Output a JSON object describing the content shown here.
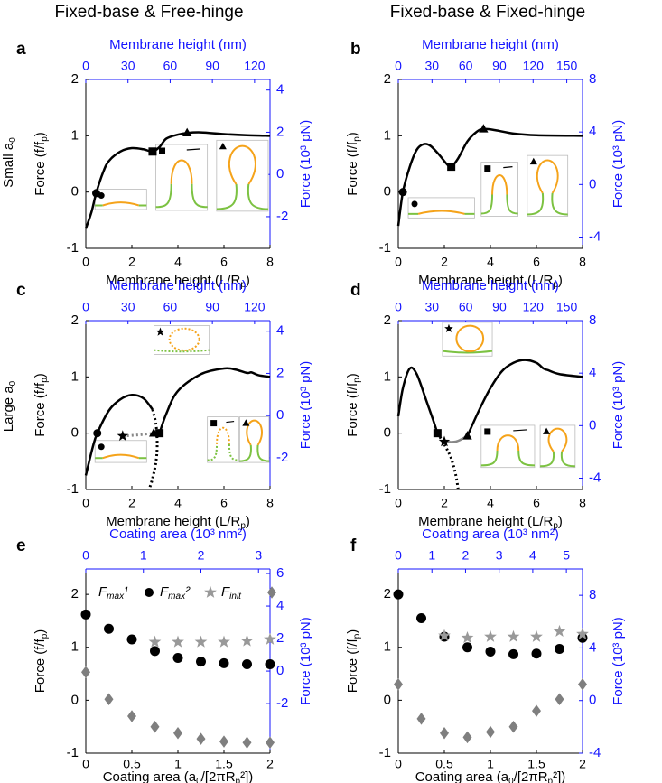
{
  "column_titles": [
    "Fixed-base & Free-hinge",
    "Fixed-base & Fixed-hinge"
  ],
  "row_labels": [
    [
      "Small a",
      "0"
    ],
    [
      "Large a",
      "0"
    ]
  ],
  "chart_data": [
    {
      "type": "line",
      "panel_label": "a",
      "xlabel": [
        "Membrane height (L/R",
        "p",
        ")"
      ],
      "ylabel": [
        "Force (f/f",
        "p",
        ")"
      ],
      "x2label": "Membrane height (nm)",
      "y2label": "Force (10³ pN)",
      "xlim": [
        0,
        8
      ],
      "xticks": [
        0,
        2,
        4,
        6,
        8
      ],
      "ylim": [
        -1,
        2
      ],
      "yticks": [
        -1,
        0,
        1,
        2
      ],
      "x2lim": [
        0,
        131
      ],
      "x2ticks": [
        0,
        30,
        60,
        90,
        120
      ],
      "y2lim": [
        -3.5,
        4.5
      ],
      "y2ticks": [
        -2,
        0,
        2,
        4
      ],
      "series": [
        {
          "color": "#000000",
          "dash": false,
          "x": [
            0,
            0.25,
            0.45,
            0.75,
            1,
            1.5,
            2,
            2.5,
            2.9,
            3.2,
            3.5,
            4,
            4.4,
            5,
            6,
            7,
            8
          ],
          "values": [
            -0.65,
            -0.35,
            -0.02,
            0.35,
            0.55,
            0.72,
            0.78,
            0.76,
            0.72,
            0.8,
            0.95,
            1.02,
            1.05,
            1.06,
            1.03,
            1.01,
            1.0
          ]
        }
      ],
      "markers": {
        "x": [
          0.45,
          2.9,
          4.4
        ],
        "values": [
          -0.02,
          0.72,
          1.05
        ],
        "shapes": [
          "circle",
          "square",
          "triangle"
        ]
      }
    },
    {
      "type": "line",
      "panel_label": "b",
      "xlabel": [
        "Membrane height (L/R",
        "p",
        ")"
      ],
      "ylabel": [
        "Force (f/f",
        "p",
        ")"
      ],
      "x2label": "Membrane height (nm)",
      "y2label": "Force (10³ pN)",
      "xlim": [
        0,
        8
      ],
      "xticks": [
        0,
        2,
        4,
        6,
        8
      ],
      "ylim": [
        -1,
        2
      ],
      "yticks": [
        -1,
        0,
        1,
        2
      ],
      "x2lim": [
        0,
        164
      ],
      "x2ticks": [
        0,
        30,
        60,
        90,
        120,
        150
      ],
      "y2lim": [
        -4.86,
        8
      ],
      "y2ticks": [
        -4,
        0,
        4,
        8
      ],
      "series": [
        {
          "color": "#000000",
          "dash": false,
          "x": [
            0,
            0.2,
            0.5,
            0.8,
            1.1,
            1.4,
            1.8,
            2.1,
            2.3,
            2.6,
            3,
            3.4,
            3.7,
            4.2,
            5,
            6,
            8
          ],
          "values": [
            -0.6,
            0,
            0.45,
            0.75,
            0.85,
            0.82,
            0.65,
            0.5,
            0.45,
            0.6,
            0.9,
            1.07,
            1.12,
            1.1,
            1.04,
            1.01,
            1.0
          ]
        }
      ],
      "markers": {
        "x": [
          0.2,
          2.3,
          3.7
        ],
        "values": [
          0,
          0.45,
          1.12
        ],
        "shapes": [
          "circle",
          "square",
          "triangle"
        ]
      }
    },
    {
      "type": "line",
      "panel_label": "c",
      "xlabel": [
        "Membrane height (L/R",
        "p",
        ")"
      ],
      "ylabel": [
        "Force (f/f",
        "p",
        ")"
      ],
      "x2label": "Membrane height (nm)",
      "y2label": "Force (10³ pN)",
      "xlim": [
        0,
        8
      ],
      "xticks": [
        0,
        2,
        4,
        6,
        8
      ],
      "ylim": [
        -1,
        2
      ],
      "yticks": [
        -1,
        0,
        1,
        2
      ],
      "x2lim": [
        0,
        131
      ],
      "x2ticks": [
        0,
        30,
        60,
        90,
        120
      ],
      "y2lim": [
        -3.5,
        4.5
      ],
      "y2ticks": [
        -2,
        0,
        2,
        4
      ],
      "series": [
        {
          "color": "#000000",
          "dash": false,
          "x": [
            0,
            0.3,
            0.5,
            1,
            1.5,
            2,
            2.5,
            2.9
          ],
          "values": [
            -0.75,
            -0.25,
            0,
            0.4,
            0.6,
            0.68,
            0.62,
            0.42
          ]
        },
        {
          "color": "#000000",
          "dash": true,
          "x": [
            2.9,
            3.05,
            3.1,
            3.05,
            2.9,
            2.75
          ],
          "values": [
            0.42,
            0.15,
            -0.2,
            -0.5,
            -0.8,
            -1
          ]
        },
        {
          "color": "#888888",
          "dash": true,
          "x": [
            1.6,
            2.3,
            2.95
          ],
          "values": [
            -0.05,
            -0.03,
            0
          ]
        },
        {
          "color": "#000000",
          "dash": false,
          "x": [
            3.2,
            3.5,
            4,
            5,
            6,
            6.5,
            7,
            7.2,
            7.5,
            8
          ],
          "values": [
            0,
            0.35,
            0.75,
            1.05,
            1.15,
            1.13,
            1.07,
            1.08,
            1.03,
            1.0
          ]
        }
      ],
      "markers": {
        "x": [
          0.5,
          1.6,
          2.95,
          3.2
        ],
        "values": [
          0,
          -0.05,
          0,
          0
        ],
        "shapes": [
          "circle",
          "star",
          "triangle",
          "square"
        ]
      }
    },
    {
      "type": "line",
      "panel_label": "d",
      "xlabel": [
        "Membrane height (L/R",
        "p",
        ")"
      ],
      "ylabel": [
        "Force (f/f",
        "p",
        ")"
      ],
      "x2label": "Membrane height (nm)",
      "y2label": "Force (10³ pN)",
      "xlim": [
        0,
        8
      ],
      "xticks": [
        0,
        2,
        4,
        6,
        8
      ],
      "ylim": [
        -1,
        2
      ],
      "yticks": [
        -1,
        0,
        1,
        2
      ],
      "x2lim": [
        0,
        164
      ],
      "x2ticks": [
        0,
        30,
        60,
        90,
        120,
        150
      ],
      "y2lim": [
        -4.86,
        8
      ],
      "y2ticks": [
        -4,
        0,
        4,
        8
      ],
      "series": [
        {
          "color": "#000000",
          "dash": false,
          "x": [
            0,
            0.2,
            0.5,
            0.8,
            1.2,
            1.5,
            1.7
          ],
          "values": [
            0.3,
            0.8,
            1.15,
            1.05,
            0.6,
            0.25,
            0
          ]
        },
        {
          "color": "#000000",
          "dash": true,
          "x": [
            1.7,
            2.0,
            2.3,
            2.5,
            2.6
          ],
          "values": [
            0,
            -0.2,
            -0.45,
            -0.75,
            -1
          ]
        },
        {
          "color": "#888888",
          "dash": false,
          "x": [
            2.0,
            2.5,
            3.0
          ],
          "values": [
            -0.15,
            -0.15,
            -0.05
          ]
        },
        {
          "color": "#000000",
          "dash": false,
          "x": [
            3.0,
            3.5,
            4,
            4.5,
            5,
            5.5,
            6,
            6.3,
            6.5,
            7,
            8
          ],
          "values": [
            -0.05,
            0.4,
            0.8,
            1.1,
            1.25,
            1.3,
            1.25,
            1.15,
            1.12,
            1.05,
            1.0
          ]
        }
      ],
      "markers": {
        "x": [
          1.7,
          2.0,
          3.0
        ],
        "values": [
          0,
          -0.15,
          -0.05
        ],
        "shapes": [
          "square",
          "star",
          "triangle"
        ]
      }
    },
    {
      "type": "scatter",
      "panel_label": "e",
      "xlabel": [
        "Coating area (a",
        "0",
        "/[2πR",
        "p",
        "²])"
      ],
      "ylabel": [
        "Force (f/f",
        "p",
        ")"
      ],
      "x2label": "Coating area (10³ nm²)",
      "y2label": "Force (10³ pN)",
      "xlim": [
        0,
        2
      ],
      "xticks": [
        0,
        0.5,
        1,
        1.5,
        2
      ],
      "ylim": [
        -1,
        2.48
      ],
      "yticks": [
        -1,
        0,
        1,
        2
      ],
      "x2lim": [
        0,
        3.2
      ],
      "x2ticks": [
        0,
        1,
        2,
        3
      ],
      "y2lim": [
        -5.05,
        6.28
      ],
      "y2ticks": [
        -2,
        0,
        2,
        4,
        6
      ],
      "x": [
        0,
        0.25,
        0.5,
        0.75,
        1,
        1.25,
        1.5,
        1.75,
        2
      ],
      "series": [
        {
          "name": [
            "F",
            "max",
            "¹"
          ],
          "color": "#000000",
          "marker": "circle",
          "values": [
            1.62,
            1.35,
            1.15,
            0.93,
            0.8,
            0.73,
            0.7,
            0.68,
            0.68
          ]
        },
        {
          "name": [
            "F",
            "max",
            "²"
          ],
          "color": "#999999",
          "marker": "star",
          "values": [
            null,
            null,
            null,
            1.1,
            1.1,
            1.1,
            1.1,
            1.12,
            1.15
          ]
        },
        {
          "name": [
            "F",
            "init"
          ],
          "color": "#7f7f7f",
          "marker": "diamond",
          "values": [
            0.53,
            0.02,
            -0.3,
            -0.5,
            -0.62,
            -0.73,
            -0.78,
            -0.8,
            -0.8
          ]
        }
      ]
    },
    {
      "type": "scatter",
      "panel_label": "f",
      "xlabel": [
        "Coating area (a",
        "0",
        "/[2πR",
        "p",
        "²])"
      ],
      "ylabel": [
        "Force (f/f",
        "p",
        ")"
      ],
      "x2label": "Coating area (10³ nm²)",
      "y2label": "Force (10³ pN)",
      "xlim": [
        0,
        2
      ],
      "xticks": [
        0,
        0.5,
        1,
        1.5,
        2
      ],
      "ylim": [
        -1,
        2.48
      ],
      "yticks": [
        -1,
        0,
        1,
        2
      ],
      "x2lim": [
        0,
        5.48
      ],
      "x2ticks": [
        0,
        1,
        2,
        3,
        4,
        5
      ],
      "y2lim": [
        -4,
        10
      ],
      "y2ticks": [
        -4,
        0,
        4,
        8
      ],
      "x": [
        0,
        0.25,
        0.5,
        0.75,
        1,
        1.25,
        1.5,
        1.75,
        2
      ],
      "series": [
        {
          "color": "#000000",
          "marker": "circle",
          "values": [
            2.0,
            1.55,
            1.2,
            1.0,
            0.92,
            0.87,
            0.88,
            0.97,
            1.18
          ]
        },
        {
          "color": "#999999",
          "marker": "star",
          "values": [
            null,
            null,
            1.22,
            1.18,
            1.2,
            1.2,
            1.2,
            1.3,
            1.25
          ]
        },
        {
          "color": "#7f7f7f",
          "marker": "diamond",
          "values": [
            0.3,
            -0.35,
            -0.62,
            -0.7,
            -0.6,
            -0.5,
            -0.2,
            0.02,
            0.3
          ]
        }
      ]
    }
  ]
}
